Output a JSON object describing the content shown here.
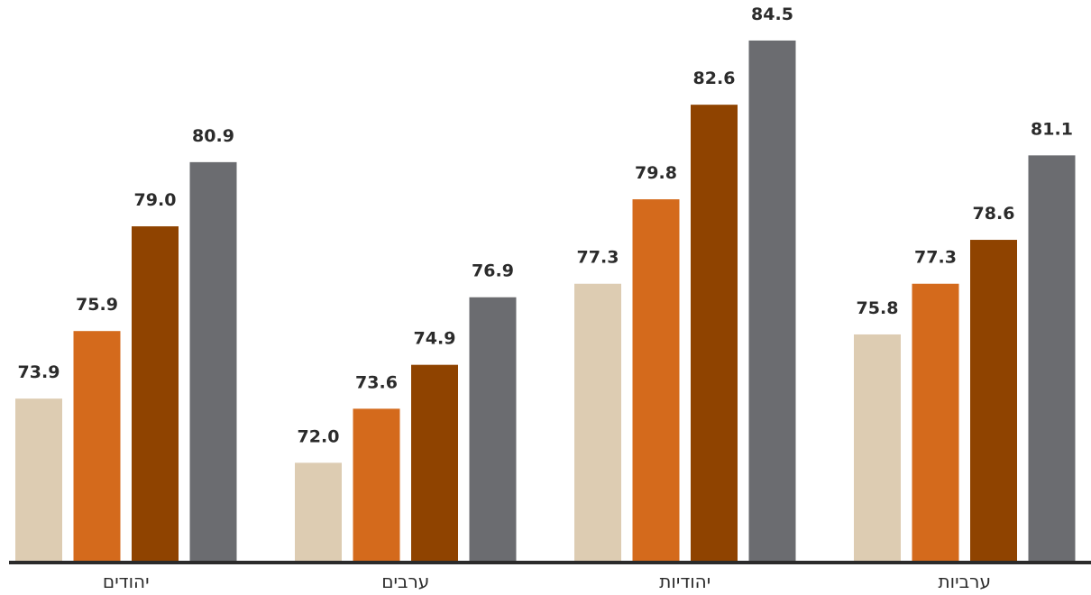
{
  "chart_data": {
    "type": "bar",
    "categories": [
      "יהודים",
      "ערבים",
      "יהודיות",
      "ערביות"
    ],
    "series": [
      {
        "values": [
          73.9,
          72.0,
          77.3,
          75.8
        ]
      },
      {
        "values": [
          75.9,
          73.6,
          79.8,
          77.3
        ]
      },
      {
        "values": [
          79.0,
          74.9,
          82.6,
          78.6
        ]
      },
      {
        "values": [
          80.9,
          76.9,
          84.5,
          81.1
        ]
      }
    ],
    "data_labels": [
      [
        "73.9",
        "72.0",
        "77.3",
        "75.8"
      ],
      [
        "75.9",
        "73.6",
        "79.8",
        "77.3"
      ],
      [
        "79.0",
        "74.9",
        "82.6",
        "78.6"
      ],
      [
        "80.9",
        "76.9",
        "84.5",
        "81.1"
      ]
    ],
    "colors": [
      "#ddccb2",
      "#d46a1c",
      "#8f4300",
      "#6b6c70"
    ],
    "baseline_color": "#2b2b2b",
    "ylim": [
      69.1,
      85.7
    ],
    "grid": false,
    "legend": "none"
  }
}
